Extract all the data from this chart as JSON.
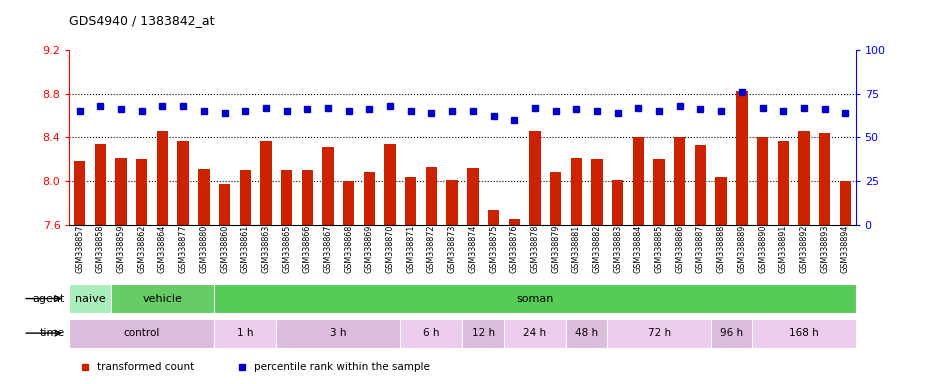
{
  "title": "GDS4940 / 1383842_at",
  "samples": [
    "GSM338857",
    "GSM338858",
    "GSM338859",
    "GSM338862",
    "GSM338864",
    "GSM338877",
    "GSM338880",
    "GSM338860",
    "GSM338861",
    "GSM338863",
    "GSM338865",
    "GSM338866",
    "GSM338867",
    "GSM338868",
    "GSM338869",
    "GSM338870",
    "GSM338871",
    "GSM338872",
    "GSM338873",
    "GSM338874",
    "GSM338875",
    "GSM338876",
    "GSM338878",
    "GSM338879",
    "GSM338881",
    "GSM338882",
    "GSM338883",
    "GSM338884",
    "GSM338885",
    "GSM338886",
    "GSM338887",
    "GSM338888",
    "GSM338889",
    "GSM338890",
    "GSM338891",
    "GSM338892",
    "GSM338893",
    "GSM338894"
  ],
  "bar_values": [
    8.18,
    8.34,
    8.21,
    8.2,
    8.46,
    8.37,
    8.11,
    7.97,
    8.1,
    8.37,
    8.1,
    8.1,
    8.31,
    8.0,
    8.08,
    8.34,
    8.04,
    8.13,
    8.01,
    8.12,
    7.73,
    7.65,
    8.46,
    8.08,
    8.21,
    8.2,
    8.01,
    8.4,
    8.2,
    8.4,
    8.33,
    8.04,
    8.82,
    8.4,
    8.37,
    8.46,
    8.44,
    8.0
  ],
  "percentile_values": [
    65,
    68,
    66,
    65,
    68,
    68,
    65,
    64,
    65,
    67,
    65,
    66,
    67,
    65,
    66,
    68,
    65,
    64,
    65,
    65,
    62,
    60,
    67,
    65,
    66,
    65,
    64,
    67,
    65,
    68,
    66,
    65,
    76,
    67,
    65,
    67,
    66,
    64
  ],
  "ylim_left": [
    7.6,
    9.2
  ],
  "ylim_right": [
    0,
    100
  ],
  "bar_color": "#cc2200",
  "dot_color": "#0000cc",
  "agent_groups": [
    {
      "label": "naive",
      "start": 0,
      "end": 2,
      "color": "#aaeebb"
    },
    {
      "label": "vehicle",
      "start": 2,
      "end": 7,
      "color": "#66cc66"
    },
    {
      "label": "soman",
      "start": 7,
      "end": 38,
      "color": "#55cc55"
    }
  ],
  "time_groups": [
    {
      "label": "control",
      "start": 0,
      "end": 7,
      "color": "#ddbbdd"
    },
    {
      "label": "1 h",
      "start": 7,
      "end": 10,
      "color": "#eeccee"
    },
    {
      "label": "3 h",
      "start": 10,
      "end": 16,
      "color": "#ddbbdd"
    },
    {
      "label": "6 h",
      "start": 16,
      "end": 19,
      "color": "#eeccee"
    },
    {
      "label": "12 h",
      "start": 19,
      "end": 21,
      "color": "#ddbbdd"
    },
    {
      "label": "24 h",
      "start": 21,
      "end": 24,
      "color": "#eeccee"
    },
    {
      "label": "48 h",
      "start": 24,
      "end": 26,
      "color": "#ddbbdd"
    },
    {
      "label": "72 h",
      "start": 26,
      "end": 31,
      "color": "#eeccee"
    },
    {
      "label": "96 h",
      "start": 31,
      "end": 33,
      "color": "#ddbbdd"
    },
    {
      "label": "168 h",
      "start": 33,
      "end": 38,
      "color": "#eeccee"
    }
  ],
  "legend_items": [
    {
      "label": "transformed count",
      "color": "#cc2200"
    },
    {
      "label": "percentile rank within the sample",
      "color": "#0000cc"
    }
  ],
  "dotted_lines": [
    8.8,
    8.4,
    8.0
  ],
  "left_yticks": [
    7.6,
    8.0,
    8.4,
    8.8,
    9.2
  ],
  "right_yticks": [
    0,
    25,
    50,
    75,
    100
  ]
}
